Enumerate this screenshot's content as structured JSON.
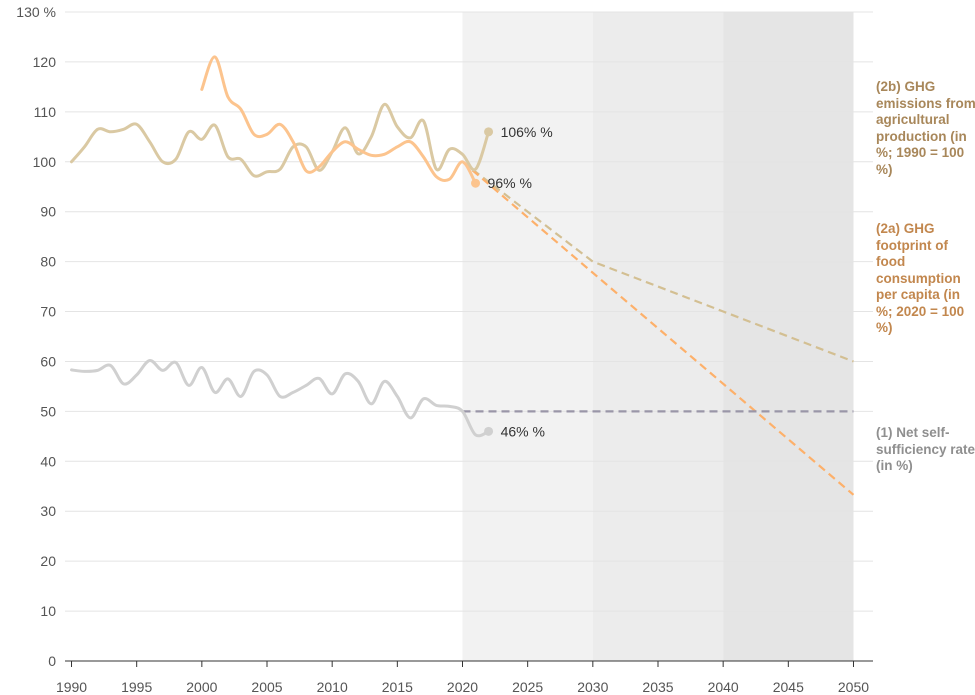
{
  "chart_data": {
    "type": "line",
    "x_ticks": [
      1990,
      1995,
      2000,
      2005,
      2010,
      2015,
      2020,
      2025,
      2030,
      2035,
      2040,
      2045,
      2050
    ],
    "y_ticks": [
      0,
      10,
      20,
      30,
      40,
      50,
      60,
      70,
      80,
      90,
      100,
      110,
      120,
      130
    ],
    "y_tick_labels": [
      "0",
      "10",
      "20",
      "30",
      "40",
      "50",
      "60",
      "70",
      "80",
      "90",
      "100",
      "110",
      "120",
      "130 %"
    ],
    "xlim": [
      1989.5,
      2050.5
    ],
    "ylim": [
      0,
      130
    ],
    "grid": true,
    "projection_bands": [
      {
        "from": 2020,
        "to": 2030,
        "color": "#f2f2f2"
      },
      {
        "from": 2030,
        "to": 2040,
        "color": "#ececec"
      },
      {
        "from": 2040,
        "to": 2050,
        "color": "#e5e5e5"
      }
    ],
    "series": [
      {
        "name": "(2b) GHG emissions from agricultural production (in %; 1990 = 100 %)",
        "color": "#dac9a3",
        "x": [
          1990,
          1991,
          1992,
          1993,
          1994,
          1995,
          1996,
          1997,
          1998,
          1999,
          2000,
          2001,
          2002,
          2003,
          2004,
          2005,
          2006,
          2007,
          2008,
          2009,
          2010,
          2011,
          2012,
          2013,
          2014,
          2015,
          2016,
          2017,
          2018,
          2019,
          2020,
          2021,
          2022
        ],
        "values": [
          100,
          103,
          106.5,
          106,
          106.5,
          107.5,
          104,
          100,
          100.5,
          106,
          104.5,
          107.3,
          101,
          100.5,
          97.2,
          98,
          98.5,
          103,
          103,
          98.3,
          102,
          106.8,
          101.6,
          105,
          111.5,
          107,
          104.8,
          108.2,
          98.5,
          102.5,
          101.5,
          98.5,
          106
        ],
        "end_label": "106% %",
        "projection": {
          "x": [
            2020,
            2030,
            2040,
            2050
          ],
          "values": [
            100,
            80,
            70,
            60
          ],
          "color": "#d3bf92"
        }
      },
      {
        "name": "(2a) GHG footprint of food consumption per capita (in %; 2020 = 100 %)",
        "color": "#fcc48e",
        "x": [
          2000,
          2001,
          2002,
          2003,
          2004,
          2005,
          2006,
          2007,
          2008,
          2009,
          2010,
          2011,
          2012,
          2013,
          2014,
          2015,
          2016,
          2017,
          2018,
          2019,
          2020,
          2021
        ],
        "values": [
          114.5,
          121,
          113,
          110.5,
          105.5,
          105.5,
          107.5,
          104,
          98.2,
          99,
          102,
          104,
          102.5,
          101.3,
          101.5,
          103,
          104,
          101,
          97,
          96.5,
          100,
          95.7
        ],
        "end_label": "96% %",
        "projection": {
          "x": [
            2020,
            2050
          ],
          "values": [
            100,
            33.3
          ],
          "color": "#fdb06a"
        }
      },
      {
        "name": "(1) Net self-sufficiency rate (in %)",
        "color": "#d0d0d0",
        "x": [
          1990,
          1991,
          1992,
          1993,
          1994,
          1995,
          1996,
          1997,
          1998,
          1999,
          2000,
          2001,
          2002,
          2003,
          2004,
          2005,
          2006,
          2007,
          2008,
          2009,
          2010,
          2011,
          2012,
          2013,
          2014,
          2015,
          2016,
          2017,
          2018,
          2019,
          2020,
          2021,
          2022
        ],
        "values": [
          58.3,
          58,
          58.2,
          59.2,
          55.5,
          57.3,
          60.2,
          58.2,
          59.8,
          55.2,
          58.8,
          53.8,
          56.5,
          53,
          58,
          57.3,
          53,
          53.8,
          55.2,
          56.6,
          53.5,
          57.5,
          56,
          51.5,
          56,
          53,
          48.7,
          52.5,
          51.2,
          51,
          50,
          45.3,
          46
        ],
        "end_label": "46% %",
        "projection": {
          "x": [
            2020,
            2050
          ],
          "values": [
            50,
            50
          ],
          "color": "#9a96a8"
        }
      }
    ],
    "legend_colors": [
      "#a8875a",
      "#c2874e",
      "#8f8f8f"
    ]
  }
}
